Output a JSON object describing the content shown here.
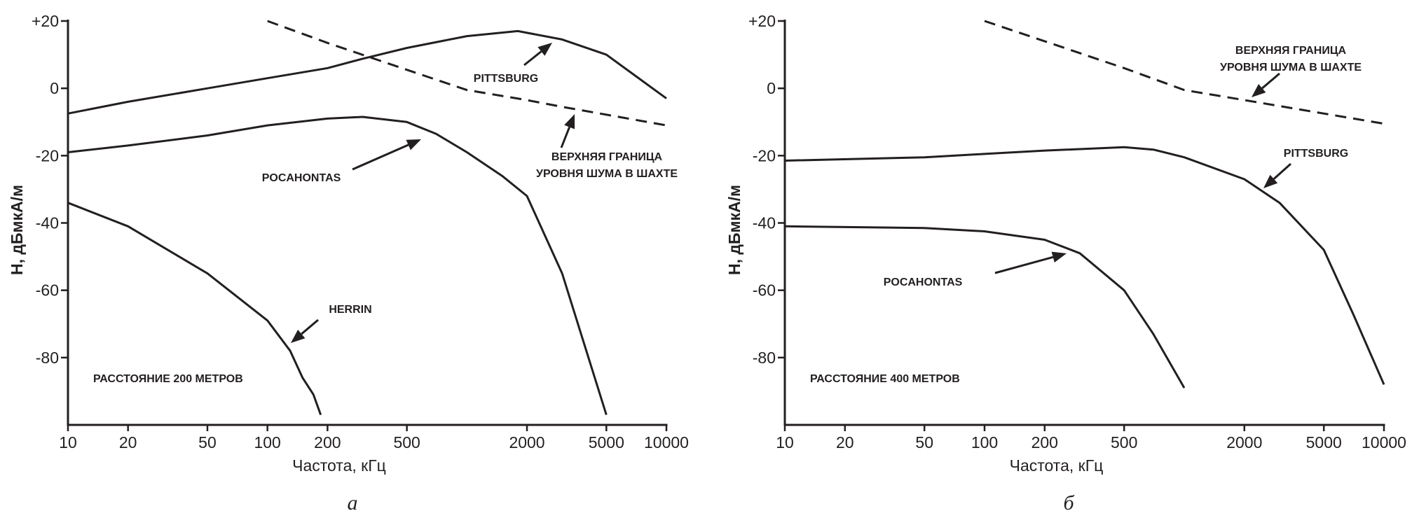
{
  "chart_data": [
    {
      "type": "line",
      "panel_caption": "а",
      "xlabel": "Частота, кГц",
      "ylabel": "H, дБмкА/м",
      "xscale": "log",
      "xlim": [
        10,
        10000
      ],
      "ylim": [
        -100,
        20
      ],
      "xticks": [
        10,
        20,
        50,
        100,
        200,
        500,
        2000,
        5000,
        10000
      ],
      "xtick_labels": [
        "10",
        "20",
        "50",
        "100",
        "200",
        "500",
        "2000",
        "5000",
        "10000"
      ],
      "yticks": [
        20,
        0,
        -20,
        -40,
        -60,
        -80
      ],
      "ytick_labels": [
        "+20",
        "0",
        "-20",
        "-40",
        "-60",
        "-80"
      ],
      "grid": false,
      "note": "РАССТОЯНИЕ 200 МЕТРОВ",
      "series": [
        {
          "name": "PITTSBURG",
          "style": "solid",
          "x": [
            10,
            20,
            50,
            100,
            200,
            300,
            500,
            1000,
            1800,
            3000,
            5000,
            10000
          ],
          "y": [
            -7.5,
            -4,
            0,
            3,
            6,
            8.8,
            12,
            15.5,
            17,
            14.5,
            10,
            -3
          ]
        },
        {
          "name": "POCAHONTAS",
          "style": "solid",
          "x": [
            10,
            20,
            50,
            100,
            200,
            300,
            500,
            700,
            1000,
            1500,
            2000,
            3000,
            5000
          ],
          "y": [
            -19,
            -17,
            -14,
            -11,
            -9,
            -8.5,
            -10,
            -13.5,
            -19,
            -26,
            -32,
            -55,
            -97
          ]
        },
        {
          "name": "HERRIN",
          "style": "solid",
          "x": [
            10,
            20,
            50,
            100,
            130,
            150,
            170,
            185
          ],
          "y": [
            -34,
            -41,
            -55,
            -69,
            -78,
            -86,
            -91,
            -97
          ]
        },
        {
          "name": "ВЕРХНЯЯ ГРАНИЦА УРОВНЯ ШУМА В ШАХТЕ",
          "style": "dashed",
          "x": [
            100,
            200,
            500,
            1000,
            2000,
            3000,
            10000
          ],
          "y": [
            20,
            13.5,
            5.5,
            -0.5,
            -3.5,
            -5.5,
            -11
          ]
        }
      ],
      "annotations": [
        {
          "lines": [
            "PITTSBURG"
          ]
        },
        {
          "lines": [
            "POCAHONTAS"
          ]
        },
        {
          "lines": [
            "ВЕРХНЯЯ ГРАНИЦА",
            "УРОВНЯ ШУМА В ШАХТЕ"
          ]
        },
        {
          "lines": [
            "HERRIN"
          ]
        }
      ]
    },
    {
      "type": "line",
      "panel_caption": "б",
      "xlabel": "Частота, кГц",
      "ylabel": "H, дБмкА/м",
      "xscale": "log",
      "xlim": [
        10,
        10000
      ],
      "ylim": [
        -100,
        20
      ],
      "xticks": [
        10,
        20,
        50,
        100,
        200,
        500,
        2000,
        5000,
        10000
      ],
      "xtick_labels": [
        "10",
        "20",
        "50",
        "100",
        "200",
        "500",
        "2000",
        "5000",
        "10000"
      ],
      "yticks": [
        20,
        0,
        -20,
        -40,
        -60,
        -80
      ],
      "ytick_labels": [
        "+20",
        "0",
        "-20",
        "-40",
        "-60",
        "-80"
      ],
      "grid": false,
      "note": "РАССТОЯНИЕ 400 МЕТРОВ",
      "series": [
        {
          "name": "PITTSBURG",
          "style": "solid",
          "x": [
            10,
            50,
            100,
            200,
            500,
            700,
            1000,
            2000,
            3000,
            5000,
            7000,
            10000
          ],
          "y": [
            -21.5,
            -20.5,
            -19.5,
            -18.5,
            -17.5,
            -18.2,
            -20.5,
            -27,
            -34,
            -48,
            -67,
            -88
          ]
        },
        {
          "name": "POCAHONTAS",
          "style": "solid",
          "x": [
            10,
            50,
            100,
            200,
            300,
            500,
            700,
            1000
          ],
          "y": [
            -41,
            -41.5,
            -42.5,
            -45,
            -49,
            -60,
            -73,
            -89
          ]
        },
        {
          "name": "ВЕРХНЯЯ ГРАНИЦА УРОВНЯ ШУМА В ШАХТЕ",
          "style": "dashed",
          "x": [
            100,
            200,
            500,
            1000,
            2000,
            5000,
            10000
          ],
          "y": [
            20,
            14,
            6,
            -0.5,
            -3.5,
            -7.5,
            -10.5
          ]
        }
      ],
      "annotations": [
        {
          "lines": [
            "ВЕРХНЯЯ ГРАНИЦА",
            "УРОВНЯ ШУМА В ШАХТЕ"
          ]
        },
        {
          "lines": [
            "PITTSBURG"
          ]
        },
        {
          "lines": [
            "POCAHONTAS"
          ]
        }
      ]
    }
  ]
}
